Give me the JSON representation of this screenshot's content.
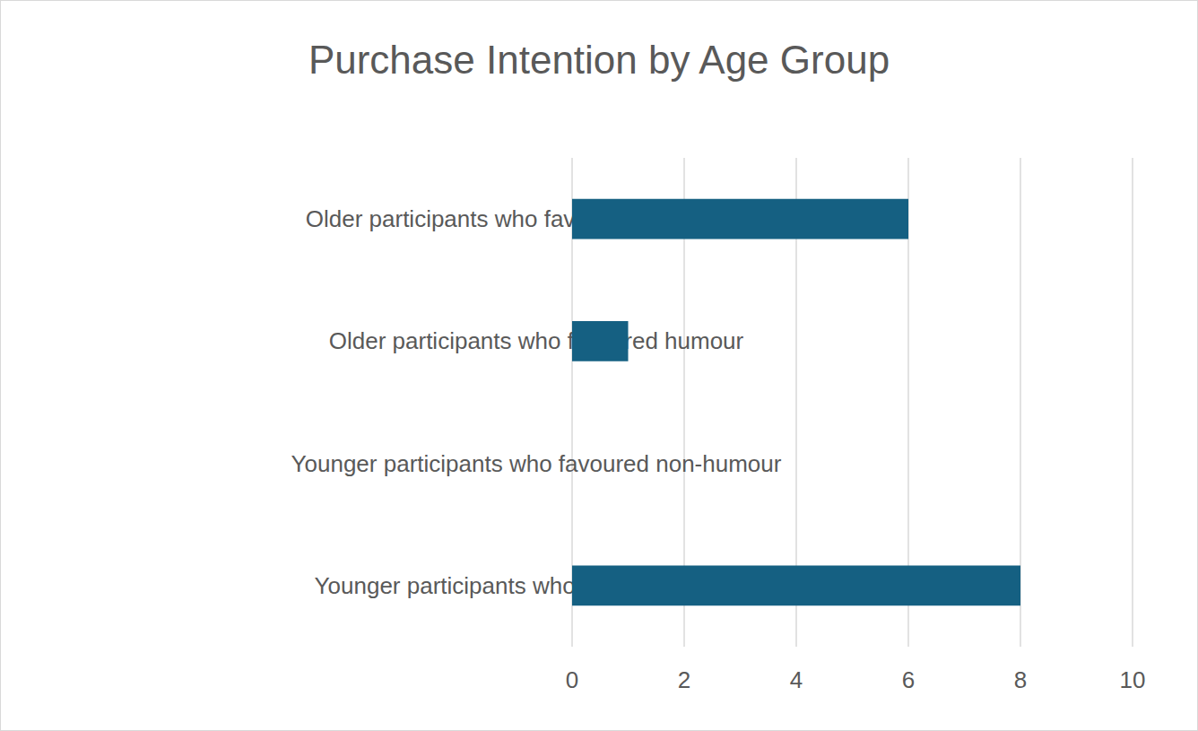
{
  "chart_data": {
    "type": "bar",
    "title": "Purchase Intention by Age Group",
    "orientation": "horizontal",
    "categories": [
      "Younger participants who favoured humour",
      "Younger participants who favoured non-humour",
      "Older participants who favoured humour",
      "Older participants who favoured non-humour"
    ],
    "values": [
      8,
      0,
      1,
      6
    ],
    "color": "#156082",
    "xlim": [
      0,
      10
    ],
    "xticks": [
      0,
      2,
      4,
      6,
      8,
      10
    ],
    "grid": true
  }
}
